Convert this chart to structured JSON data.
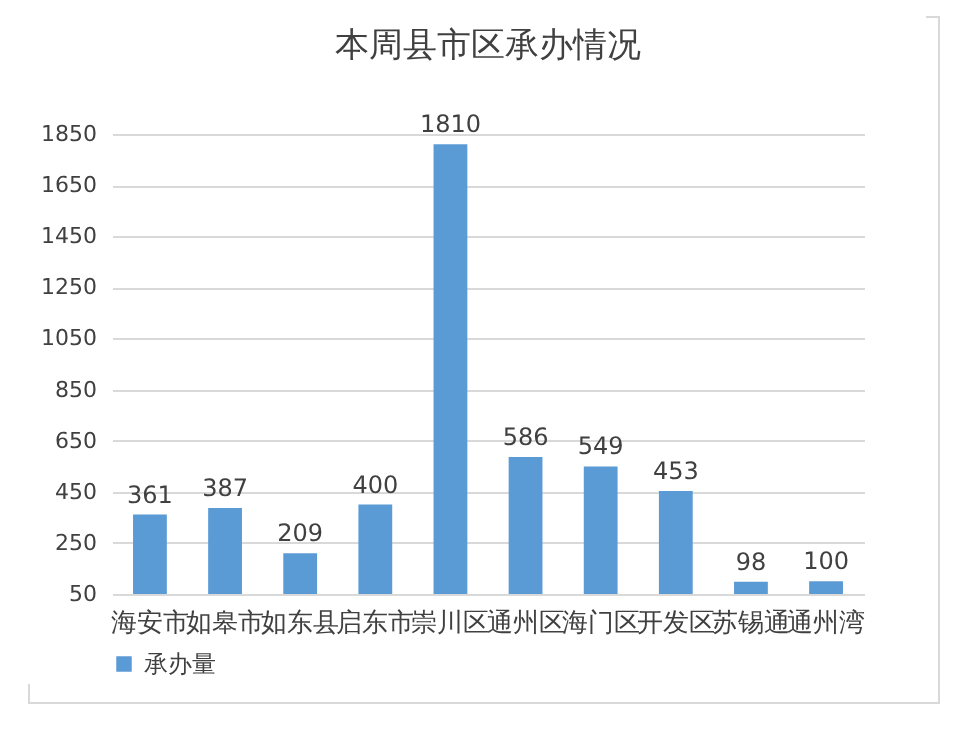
{
  "chart_data": {
    "type": "bar",
    "title": "本周县市区承办情况",
    "categories": [
      "海安市",
      "如皋市",
      "如东县",
      "启东市",
      "崇川区",
      "通州区",
      "海门区",
      "开发区",
      "苏锡通",
      "通州湾"
    ],
    "series": [
      {
        "name": "承办量",
        "color": "#5b9bd5",
        "values": [
          361,
          387,
          209,
          400,
          1810,
          586,
          549,
          453,
          98,
          100
        ]
      }
    ],
    "ylim": [
      50,
      1850
    ],
    "yticks": [
      50,
      250,
      450,
      650,
      850,
      1050,
      1250,
      1450,
      1650,
      1850
    ],
    "grid": "y",
    "legend": "bottom",
    "data_labels": true
  }
}
